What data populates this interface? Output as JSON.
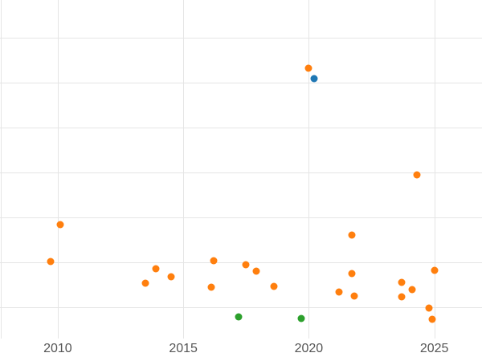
{
  "figure": {
    "background": "#ffffff",
    "gridline_color": "#e5e5e5",
    "tick_label_color": "#555555"
  },
  "chart_data": {
    "type": "scatter",
    "title": "",
    "xlabel": "",
    "ylabel": "",
    "grid": true,
    "legend": false,
    "xlim": [
      2007.7,
      2026.9
    ],
    "ylim": [
      0.3,
      7.84
    ],
    "x_tick_values": [
      2010,
      2015,
      2020,
      2025
    ],
    "x_tick_labels": [
      "2010",
      "2015",
      "2020",
      "2025"
    ],
    "y_gridline_values": [
      1,
      2,
      3,
      4,
      5,
      6,
      7
    ],
    "series": [
      {
        "name": "orange-series",
        "color": "#ff7f0e",
        "points": [
          [
            2020.0,
            6.32
          ],
          [
            2024.3,
            3.95
          ],
          [
            2010.1,
            2.84
          ],
          [
            2009.7,
            2.02
          ],
          [
            2021.7,
            2.61
          ],
          [
            2016.2,
            2.04
          ],
          [
            2013.9,
            1.86
          ],
          [
            2017.5,
            1.95
          ],
          [
            2017.9,
            1.8
          ],
          [
            2014.5,
            1.68
          ],
          [
            2013.5,
            1.54
          ],
          [
            2018.6,
            1.46
          ],
          [
            2016.1,
            1.45
          ],
          [
            2021.7,
            1.75
          ],
          [
            2021.2,
            1.34
          ],
          [
            2021.8,
            1.25
          ],
          [
            2023.7,
            1.55
          ],
          [
            2025.0,
            1.82
          ],
          [
            2024.1,
            1.39
          ],
          [
            2023.7,
            1.23
          ],
          [
            2024.8,
            0.98
          ],
          [
            2024.9,
            0.73
          ]
        ]
      },
      {
        "name": "blue-series",
        "color": "#1f77b4",
        "points": [
          [
            2020.2,
            6.09
          ]
        ]
      },
      {
        "name": "green-series",
        "color": "#2ca02c",
        "points": [
          [
            2017.2,
            0.79
          ],
          [
            2019.7,
            0.75
          ]
        ]
      }
    ]
  }
}
